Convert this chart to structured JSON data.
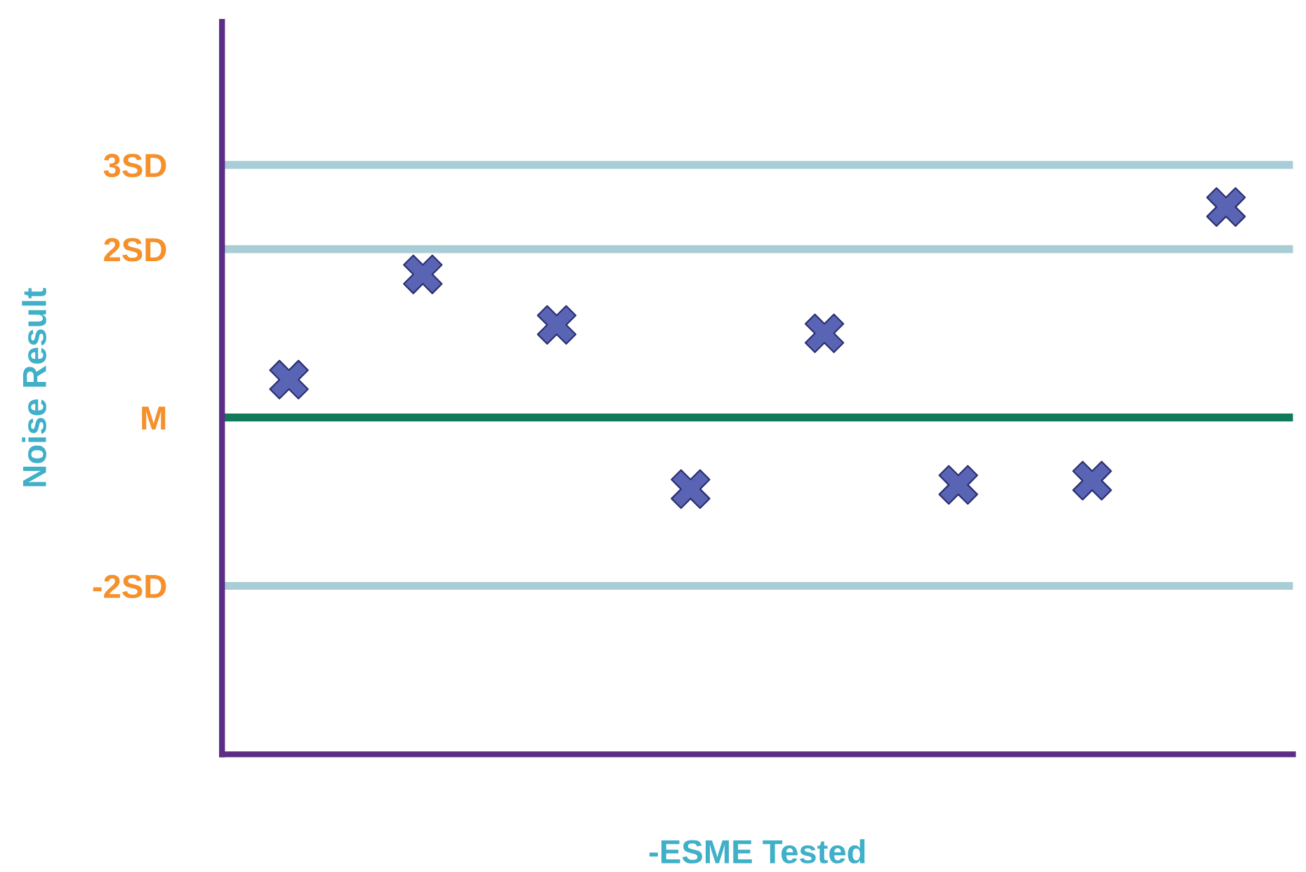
{
  "chart_data": {
    "type": "scatter",
    "xlabel": "-ESME Tested",
    "ylabel": "Noise Result",
    "categories": [
      null,
      null,
      null,
      null,
      null,
      null,
      null,
      null
    ],
    "values": [
      0.45,
      1.7,
      1.1,
      -0.85,
      1.0,
      -0.8,
      -0.75,
      2.5
    ],
    "color": "#5a64b4",
    "marker": "cross",
    "ylim": [
      -4,
      4.7
    ],
    "yticks": [
      {
        "value": 3,
        "label": "3SD"
      },
      {
        "value": 2,
        "label": "2SD"
      },
      {
        "value": 0,
        "label": "M"
      },
      {
        "value": -2,
        "label": "-2SD"
      }
    ],
    "ref_lines": [
      {
        "axis": "y",
        "value": 3,
        "color": "#a8cdd6"
      },
      {
        "axis": "y",
        "value": 2,
        "color": "#a8cdd6"
      },
      {
        "axis": "y",
        "value": 0,
        "color": "#107a5c"
      },
      {
        "axis": "y",
        "value": -2,
        "color": "#a8cdd6"
      }
    ],
    "grid": false,
    "legend": false
  }
}
